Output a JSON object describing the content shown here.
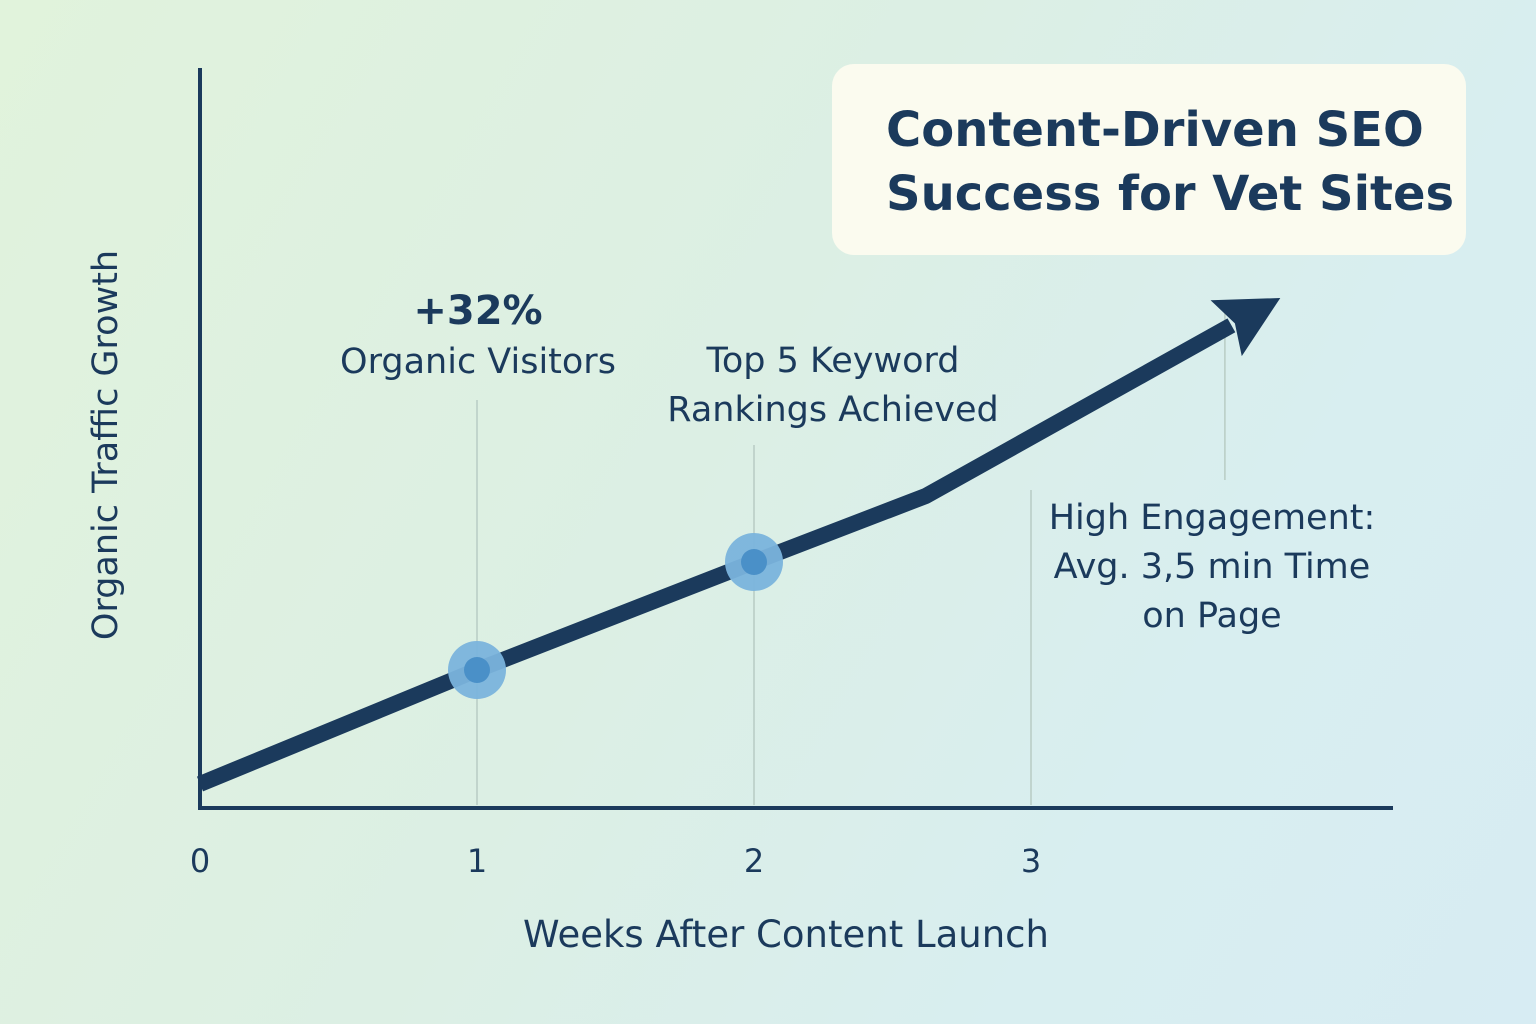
{
  "title": [
    "Content-Driven SEO",
    "Success for Vet Sites"
  ],
  "chart_data": {
    "type": "line",
    "title": "Content-Driven SEO Success for Vet Sites",
    "xlabel": "Weeks After Content Launch",
    "ylabel": "Organic Traffic Growth",
    "x_ticks": [
      "0",
      "1",
      "2",
      "3"
    ],
    "xlim": [
      0,
      4.3
    ],
    "ylim": [
      0,
      10
    ],
    "series": [
      {
        "x": [
          0,
          1,
          2,
          2.62,
          3.9
        ],
        "y": [
          0.4,
          2.3,
          4.1,
          5.2,
          8.5
        ],
        "marker_points": [
          1,
          2
        ],
        "ends_with_arrow": true
      }
    ],
    "annotations": [
      {
        "x": 1,
        "lines": [
          "+32%",
          "Organic Visitors"
        ]
      },
      {
        "x": 2,
        "lines": [
          "Top 5 Keyword",
          "Rankings Achieved"
        ]
      },
      {
        "x": 3.7,
        "lines": [
          "High Engagement:",
          "Avg. 3,5 min Time",
          "on Page"
        ]
      }
    ],
    "grid": false,
    "colors": {
      "line": "#1b3a5c",
      "marker_outer": "#7ab3dc",
      "marker_inner": "#4a90c8",
      "guide": "#b8ccc4",
      "text": "#1b3a5c"
    }
  }
}
